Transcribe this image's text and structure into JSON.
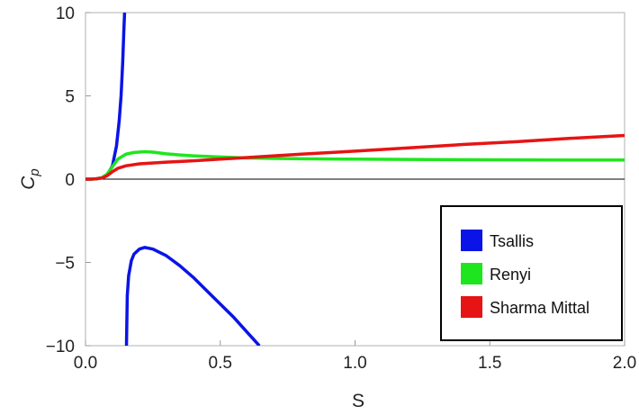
{
  "chart_data": {
    "type": "line",
    "xlabel": "S",
    "ylabel": "C",
    "ylabel_sub": "p",
    "xlim": [
      0,
      2
    ],
    "ylim": [
      -10,
      10
    ],
    "grid": false,
    "legend_position": "bottom-right",
    "x_ticks": [
      {
        "value": 0.0,
        "label": "0.0"
      },
      {
        "value": 0.5,
        "label": "0.5"
      },
      {
        "value": 1.0,
        "label": "1.0"
      },
      {
        "value": 1.5,
        "label": "1.5"
      },
      {
        "value": 2.0,
        "label": "2.0"
      }
    ],
    "y_ticks": [
      {
        "value": -10,
        "label": "−10"
      },
      {
        "value": -5,
        "label": "−5"
      },
      {
        "value": 0,
        "label": "0"
      },
      {
        "value": 5,
        "label": "5"
      },
      {
        "value": 10,
        "label": "10"
      }
    ],
    "series": [
      {
        "name": "Tsallis",
        "color": "#0a14e6",
        "segments": [
          [
            [
              0.0,
              0
            ],
            [
              0.02,
              0.0
            ],
            [
              0.04,
              0.02
            ],
            [
              0.06,
              0.08
            ],
            [
              0.08,
              0.25
            ],
            [
              0.1,
              0.8
            ],
            [
              0.115,
              2.0
            ],
            [
              0.125,
              3.5
            ],
            [
              0.132,
              5.0
            ],
            [
              0.138,
              7.0
            ],
            [
              0.142,
              8.8
            ],
            [
              0.145,
              10.0
            ]
          ],
          [
            [
              0.152,
              -10.0
            ],
            [
              0.155,
              -7.0
            ],
            [
              0.16,
              -5.8
            ],
            [
              0.17,
              -4.9
            ],
            [
              0.18,
              -4.5
            ],
            [
              0.2,
              -4.2
            ],
            [
              0.22,
              -4.1
            ],
            [
              0.25,
              -4.2
            ],
            [
              0.3,
              -4.6
            ],
            [
              0.35,
              -5.2
            ],
            [
              0.4,
              -5.9
            ],
            [
              0.45,
              -6.7
            ],
            [
              0.5,
              -7.5
            ],
            [
              0.55,
              -8.3
            ],
            [
              0.6,
              -9.2
            ],
            [
              0.645,
              -10.0
            ]
          ]
        ]
      },
      {
        "name": "Renyi",
        "color": "#1ee61e",
        "segments": [
          [
            [
              0.0,
              0
            ],
            [
              0.02,
              0.0
            ],
            [
              0.04,
              0.02
            ],
            [
              0.06,
              0.08
            ],
            [
              0.08,
              0.3
            ],
            [
              0.1,
              0.75
            ],
            [
              0.12,
              1.2
            ],
            [
              0.15,
              1.5
            ],
            [
              0.18,
              1.6
            ],
            [
              0.22,
              1.65
            ],
            [
              0.25,
              1.62
            ],
            [
              0.3,
              1.52
            ],
            [
              0.35,
              1.45
            ],
            [
              0.4,
              1.4
            ],
            [
              0.5,
              1.33
            ],
            [
              0.6,
              1.27
            ],
            [
              0.7,
              1.24
            ],
            [
              0.8,
              1.22
            ],
            [
              1.0,
              1.2
            ],
            [
              1.2,
              1.18
            ],
            [
              1.5,
              1.16
            ],
            [
              1.8,
              1.15
            ],
            [
              2.0,
              1.15
            ]
          ]
        ]
      },
      {
        "name": "Sharma Mittal",
        "color": "#e61414",
        "segments": [
          [
            [
              0.0,
              0
            ],
            [
              0.02,
              0.0
            ],
            [
              0.04,
              0.02
            ],
            [
              0.06,
              0.06
            ],
            [
              0.08,
              0.2
            ],
            [
              0.1,
              0.45
            ],
            [
              0.12,
              0.65
            ],
            [
              0.15,
              0.8
            ],
            [
              0.2,
              0.92
            ],
            [
              0.3,
              1.02
            ],
            [
              0.4,
              1.1
            ],
            [
              0.5,
              1.2
            ],
            [
              0.6,
              1.3
            ],
            [
              0.7,
              1.4
            ],
            [
              0.8,
              1.5
            ],
            [
              1.0,
              1.68
            ],
            [
              1.2,
              1.88
            ],
            [
              1.4,
              2.08
            ],
            [
              1.6,
              2.25
            ],
            [
              1.8,
              2.45
            ],
            [
              2.0,
              2.62
            ]
          ]
        ]
      }
    ]
  }
}
